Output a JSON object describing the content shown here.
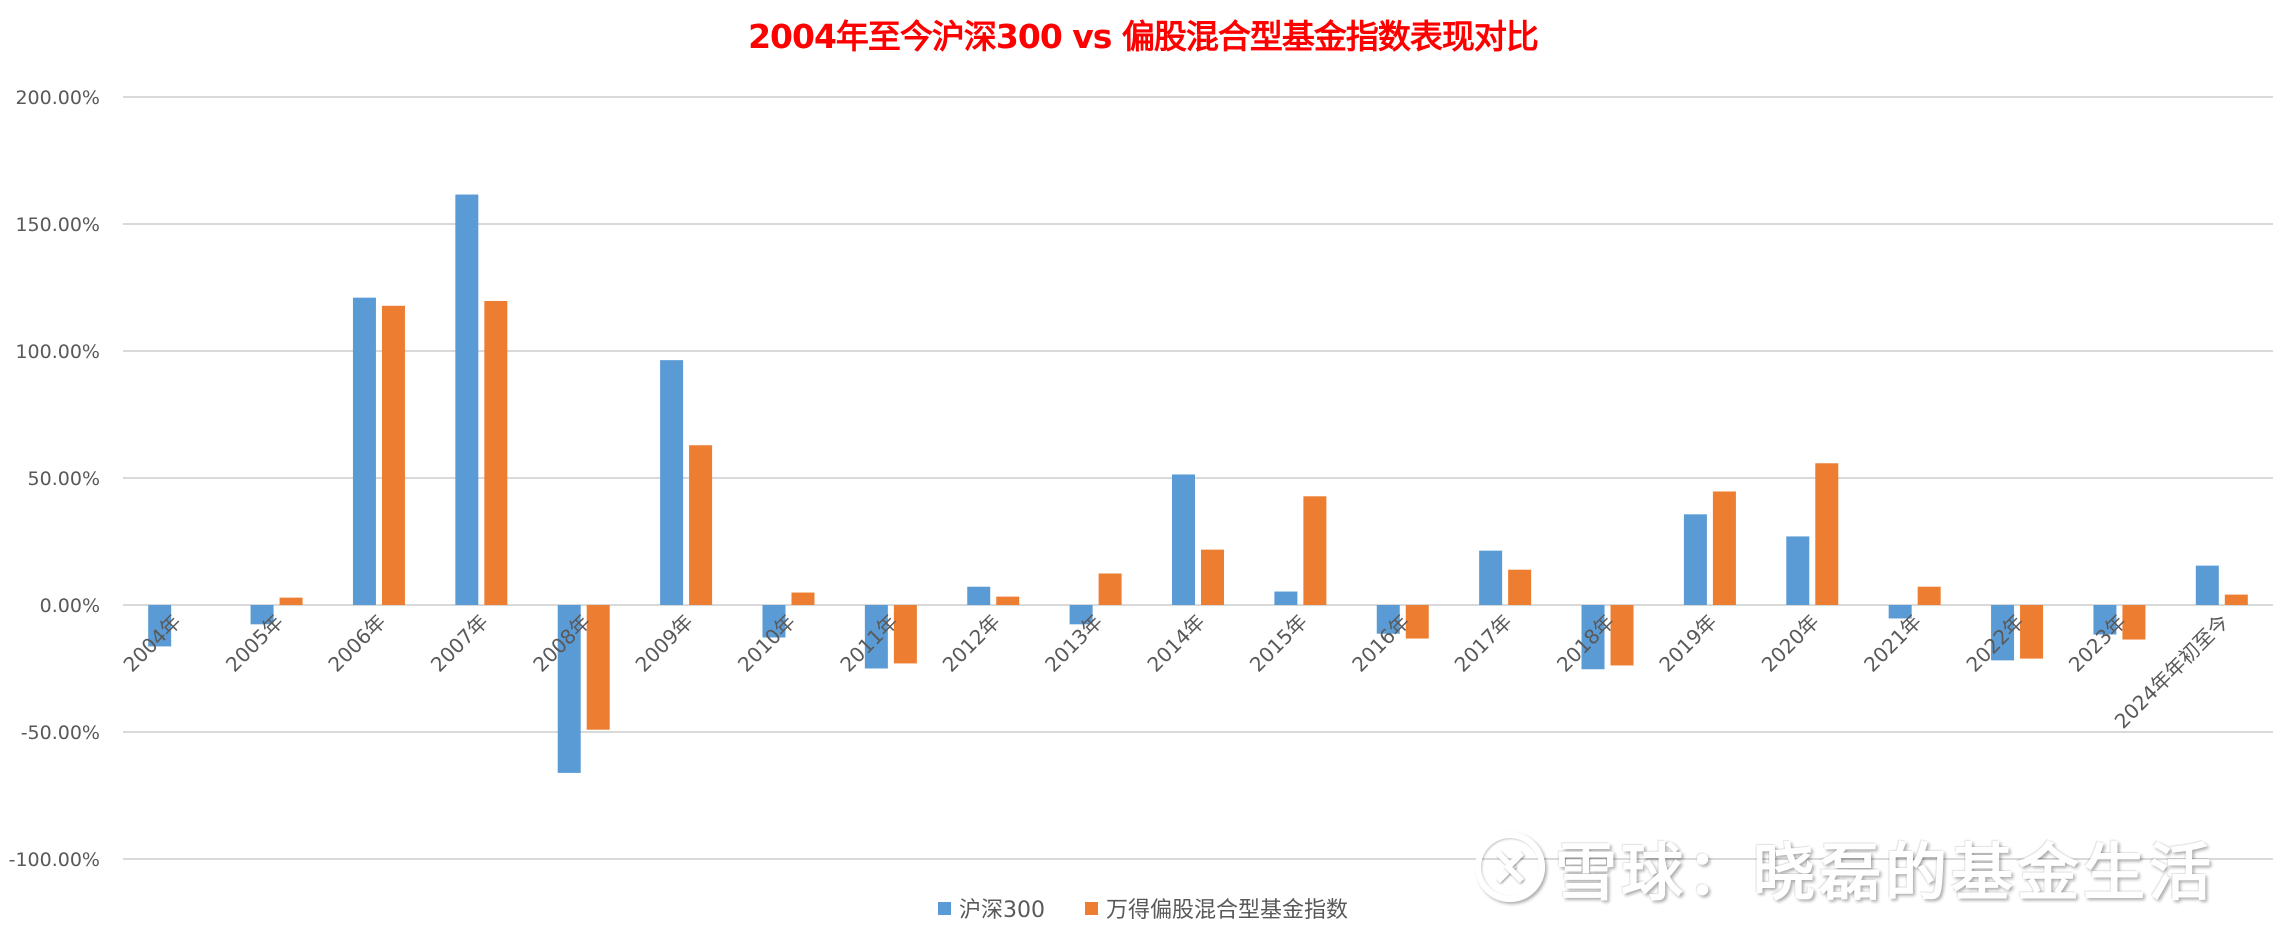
{
  "chart_data": {
    "type": "bar",
    "title": "2004年至今沪深300 vs 偏股混合型基金指数表现对比",
    "xlabel": "",
    "ylabel": "",
    "ylim": [
      -1.0,
      2.0
    ],
    "yticks": [
      2.0,
      1.5,
      1.0,
      0.5,
      0.0,
      -0.5,
      -1.0
    ],
    "ytick_labels": [
      "200.00%",
      "150.00%",
      "100.00%",
      "50.00%",
      "0.00%",
      "-50.00%",
      "-100.00%"
    ],
    "grid": true,
    "legend_position": "bottom",
    "categories": [
      "2004年",
      "2005年",
      "2006年",
      "2007年",
      "2008年",
      "2009年",
      "2010年",
      "2011年",
      "2012年",
      "2013年",
      "2014年",
      "2015年",
      "2016年",
      "2017年",
      "2018年",
      "2019年",
      "2020年",
      "2021年",
      "2022年",
      "2023年",
      "2024年年初至今"
    ],
    "series": [
      {
        "name": "沪深300",
        "color": "#5b9bd5",
        "values": [
          -0.163,
          -0.076,
          1.21,
          1.616,
          -0.661,
          0.964,
          -0.128,
          -0.25,
          0.072,
          -0.076,
          0.514,
          0.053,
          -0.113,
          0.214,
          -0.253,
          0.357,
          0.27,
          -0.053,
          -0.218,
          -0.116,
          0.155
        ]
      },
      {
        "name": "万得偏股混合型基金指数",
        "color": "#ed7d31",
        "values": [
          0.0,
          0.029,
          1.178,
          1.197,
          -0.491,
          0.629,
          0.049,
          -0.23,
          0.033,
          0.124,
          0.218,
          0.428,
          -0.132,
          0.139,
          -0.238,
          0.447,
          0.558,
          0.072,
          -0.211,
          -0.136,
          0.041
        ]
      }
    ]
  },
  "title": "2004年至今沪深300 vs 偏股混合型基金指数表现对比",
  "legend": {
    "items": [
      {
        "label": "沪深300",
        "color": "#5b9bd5"
      },
      {
        "label": "万得偏股混合型基金指数",
        "color": "#ed7d31"
      }
    ]
  },
  "watermark": {
    "logo": "xueqiu-logo-icon",
    "text": "雪球：晓磊的基金生活"
  },
  "colors": {
    "title": "#ff0000",
    "grid": "#d9d9d9",
    "axis_text": "#595959"
  }
}
